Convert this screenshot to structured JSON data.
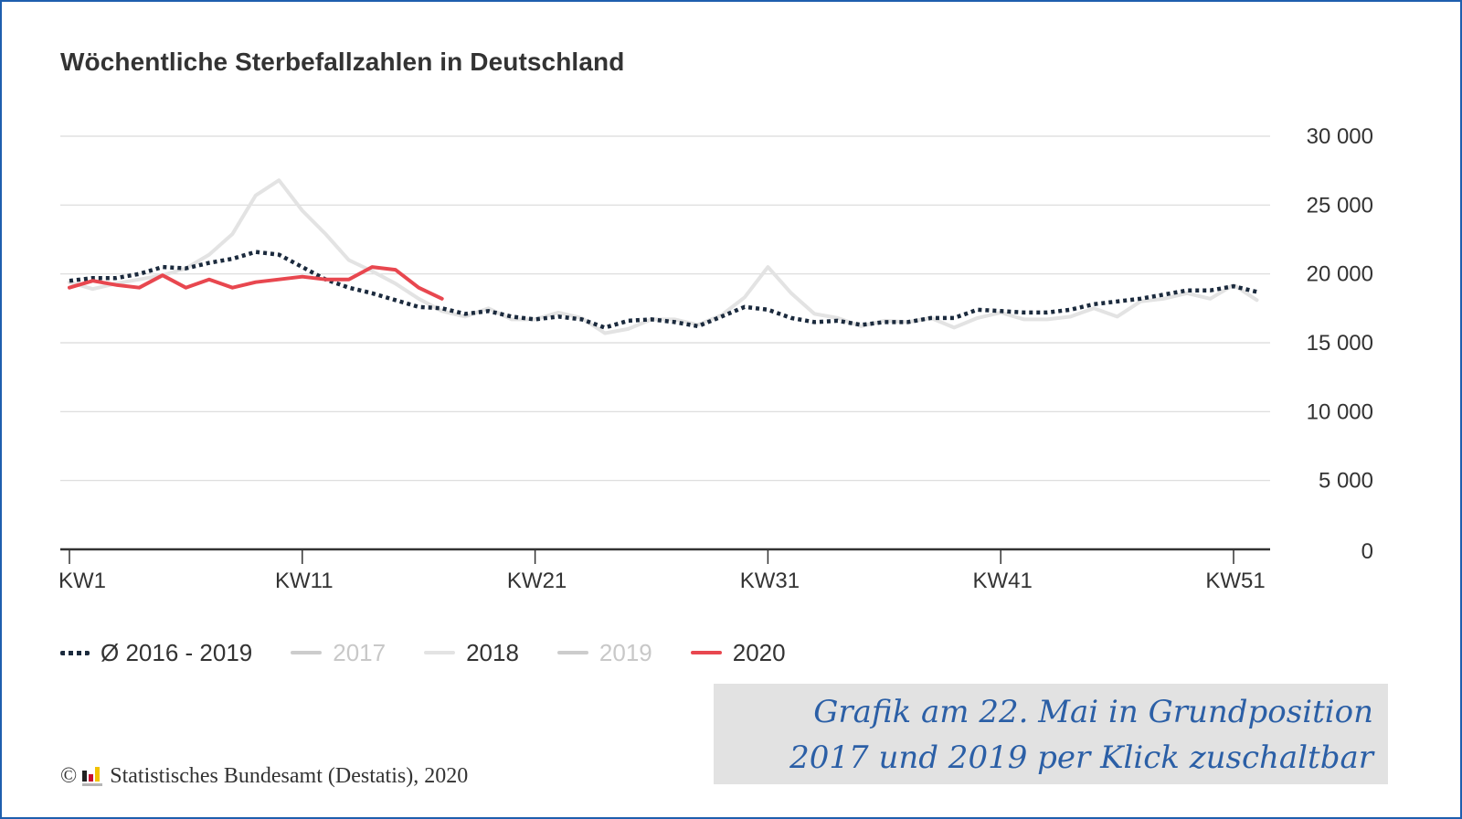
{
  "chart_data": {
    "type": "line",
    "title": "Wöchentliche Sterbefallzahlen in Deutschland",
    "xlabel": "",
    "ylabel": "",
    "x": [
      "KW1",
      "KW2",
      "KW3",
      "KW4",
      "KW5",
      "KW6",
      "KW7",
      "KW8",
      "KW9",
      "KW10",
      "KW11",
      "KW12",
      "KW13",
      "KW14",
      "KW15",
      "KW16",
      "KW17",
      "KW18",
      "KW19",
      "KW20",
      "KW21",
      "KW22",
      "KW23",
      "KW24",
      "KW25",
      "KW26",
      "KW27",
      "KW28",
      "KW29",
      "KW30",
      "KW31",
      "KW32",
      "KW33",
      "KW34",
      "KW35",
      "KW36",
      "KW37",
      "KW38",
      "KW39",
      "KW40",
      "KW41",
      "KW42",
      "KW43",
      "KW44",
      "KW45",
      "KW46",
      "KW47",
      "KW48",
      "KW49",
      "KW50",
      "KW51",
      "KW52"
    ],
    "x_ticks": [
      "KW1",
      "KW11",
      "KW21",
      "KW31",
      "KW41",
      "KW51"
    ],
    "y_ticks": [
      0,
      5000,
      10000,
      15000,
      20000,
      25000,
      30000
    ],
    "y_tick_labels": [
      "0",
      "5 000",
      "10 000",
      "15 000",
      "20 000",
      "25 000",
      "30 000"
    ],
    "ylim": [
      0,
      30000
    ],
    "grid": true,
    "y_axis_side": "right",
    "legend_position": "bottom-left",
    "series": [
      {
        "name": "Ø 2016 - 2019",
        "visible": true,
        "style": "dotted",
        "color": "#1b2a3d",
        "values": [
          19500,
          19700,
          19700,
          20000,
          20500,
          20400,
          20800,
          21100,
          21600,
          21400,
          20500,
          19600,
          19000,
          18600,
          18100,
          17600,
          17500,
          17100,
          17300,
          16900,
          16700,
          16900,
          16700,
          16100,
          16600,
          16700,
          16500,
          16200,
          16900,
          17600,
          17400,
          16800,
          16500,
          16600,
          16300,
          16500,
          16500,
          16800,
          16800,
          17400,
          17300,
          17200,
          17200,
          17400,
          17800,
          18000,
          18200,
          18500,
          18800,
          18800,
          19100,
          18700
        ]
      },
      {
        "name": "2017",
        "visible": false,
        "style": "solid",
        "color": "#c8c8c8",
        "values": []
      },
      {
        "name": "2018",
        "visible": true,
        "style": "solid",
        "color": "#e3e3e3",
        "values": [
          19400,
          18900,
          19300,
          19600,
          19900,
          20400,
          21400,
          22900,
          25700,
          26800,
          24600,
          22900,
          21000,
          20200,
          19300,
          18200,
          17300,
          16900,
          17500,
          16700,
          16700,
          17200,
          16800,
          15700,
          16000,
          16700,
          16700,
          16300,
          17000,
          18300,
          20500,
          18600,
          17100,
          16800,
          16200,
          16600,
          16500,
          16800,
          16100,
          16800,
          17200,
          16700,
          16700,
          16900,
          17500,
          16900,
          18000,
          18200,
          18600,
          18200,
          19200,
          18100
        ]
      },
      {
        "name": "2019",
        "visible": false,
        "style": "solid",
        "color": "#c8c8c8",
        "values": []
      },
      {
        "name": "2020",
        "visible": true,
        "style": "solid",
        "color": "#e8474f",
        "values": [
          19000,
          19500,
          19200,
          19000,
          19900,
          19000,
          19600,
          19000,
          19400,
          19600,
          19800,
          19600,
          19600,
          20500,
          20300,
          19000,
          18200
        ]
      }
    ]
  },
  "source": {
    "copyright_symbol": "©",
    "text": "Statistisches Bundesamt (Destatis), 2020"
  },
  "note": {
    "line1": "Grafik am 22. Mai in Grundposition",
    "line2": "2017 und 2019 per Klick zuschaltbar"
  },
  "colors": {
    "frame": "#1f5fae",
    "note_background": "#e2e2e2",
    "note_text": "#2b5fa6"
  }
}
